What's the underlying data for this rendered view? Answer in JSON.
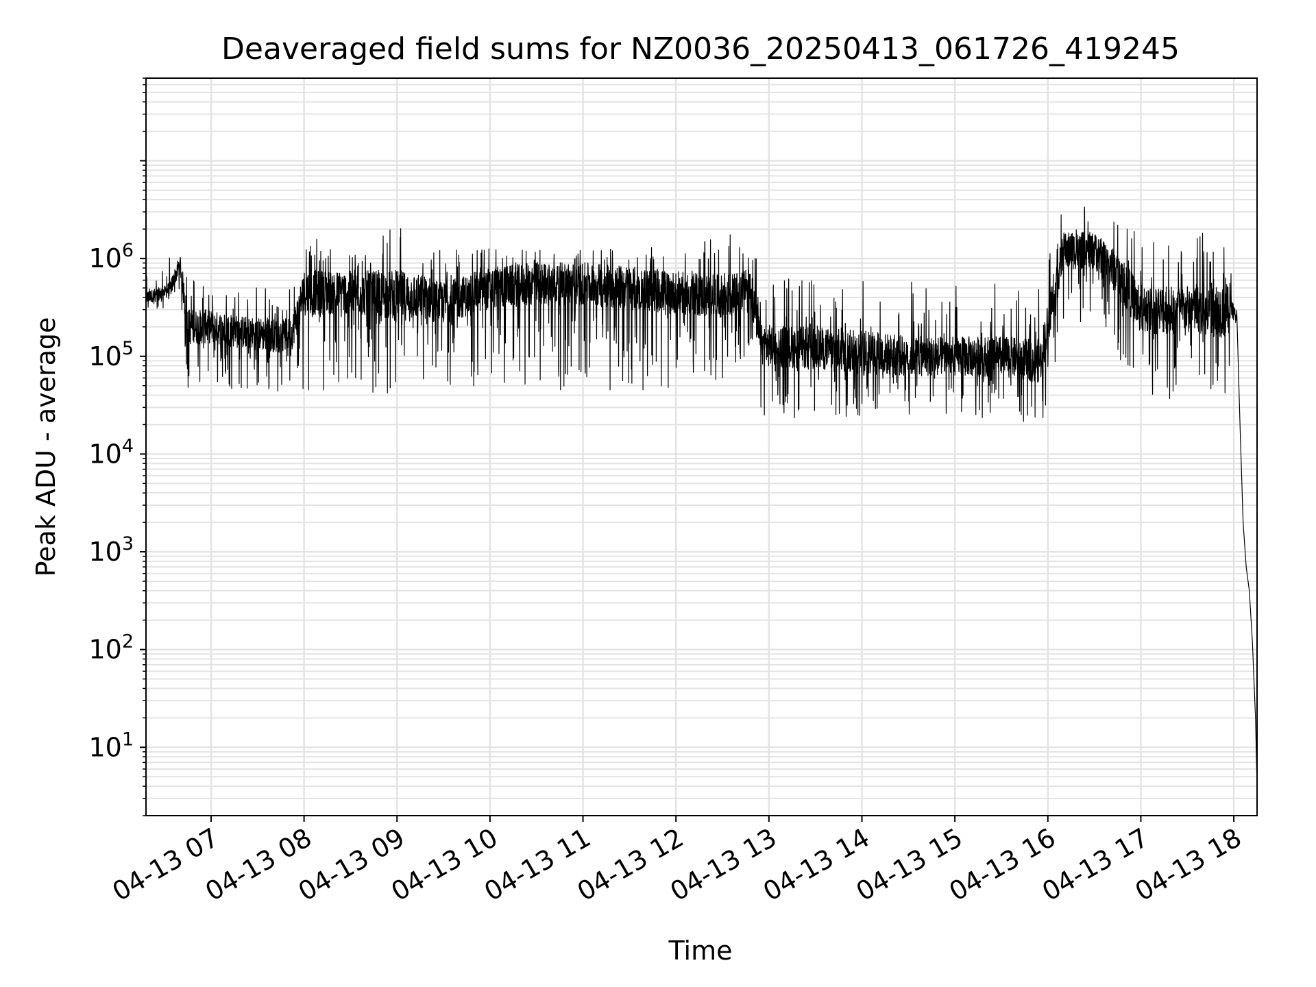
{
  "chart_data": {
    "type": "line",
    "title": "Deaveraged field sums for NZ0036_20250413_061726_419245",
    "xlabel": "Time",
    "ylabel": "Peak ADU - average",
    "y_scale": "log",
    "ylim": [
      2,
      70000000
    ],
    "xlim": [
      "04-13 06:18",
      "04-13 18:15"
    ],
    "grid": true,
    "grid_minor_y": true,
    "line_color": "#000000",
    "grid_color": "#e3e3e3",
    "x_ticks": [
      "04-13 07",
      "04-13 08",
      "04-13 09",
      "04-13 10",
      "04-13 11",
      "04-13 12",
      "04-13 13",
      "04-13 14",
      "04-13 15",
      "04-13 16",
      "04-13 17",
      "04-13 18"
    ],
    "y_ticks": [
      {
        "value": 10,
        "base": "10",
        "exp": "1"
      },
      {
        "value": 100,
        "base": "10",
        "exp": "2"
      },
      {
        "value": 1000,
        "base": "10",
        "exp": "3"
      },
      {
        "value": 10000,
        "base": "10",
        "exp": "4"
      },
      {
        "value": 100000,
        "base": "10",
        "exp": "5"
      },
      {
        "value": 1000000,
        "base": "10",
        "exp": "6"
      }
    ],
    "series": [
      {
        "x": [
          "04-13 06:18",
          "04-13 06:30",
          "04-13 06:34",
          "04-13 06:40",
          "04-13 06:45",
          "04-13 06:50",
          "04-13 07:00",
          "04-13 07:15",
          "04-13 07:30",
          "04-13 07:45",
          "04-13 07:52",
          "04-13 08:00",
          "04-13 08:30",
          "04-13 09:00",
          "04-13 09:20",
          "04-13 09:30",
          "04-13 10:00",
          "04-13 10:30",
          "04-13 11:00",
          "04-13 11:30",
          "04-13 12:00",
          "04-13 12:30",
          "04-13 12:48",
          "04-13 12:55",
          "04-13 13:30",
          "04-13 14:00",
          "04-13 14:30",
          "04-13 15:00",
          "04-13 15:30",
          "04-13 15:50",
          "04-13 15:55",
          "04-13 16:10",
          "04-13 16:30",
          "04-13 16:45",
          "04-13 17:00",
          "04-13 17:30",
          "04-13 17:55",
          "04-13 18:00",
          "04-13 18:02",
          "04-13 18:04",
          "04-13 18:06",
          "04-13 18:08",
          "04-13 18:10",
          "04-13 18:12",
          "04-13 18:14",
          "04-13 18:15"
        ],
        "baseline": [
          400000,
          450000,
          500000,
          900000,
          200000,
          200000,
          200000,
          180000,
          170000,
          160000,
          170000,
          450000,
          450000,
          420000,
          400000,
          350000,
          500000,
          550000,
          550000,
          500000,
          450000,
          400000,
          500000,
          130000,
          120000,
          110000,
          100000,
          100000,
          100000,
          90000,
          90000,
          1200000,
          1200000,
          700000,
          300000,
          300000,
          300000,
          300000,
          250000,
          20000,
          2000,
          700,
          400,
          120,
          20,
          4
        ],
        "low": [
          250000,
          300000,
          350000,
          450000,
          45000,
          45000,
          45000,
          45000,
          45000,
          40000,
          45000,
          45000,
          45000,
          40000,
          45000,
          45000,
          50000,
          45000,
          45000,
          45000,
          45000,
          60000,
          90000,
          25000,
          22000,
          20000,
          25000,
          25000,
          22000,
          20000,
          17000,
          200000,
          200000,
          100000,
          35000,
          35000,
          30000,
          250000,
          200000,
          20000,
          2000,
          700,
          400,
          120,
          20,
          4
        ],
        "high": [
          700000,
          800000,
          1200000,
          2500000,
          800000,
          700000,
          600000,
          600000,
          600000,
          550000,
          600000,
          1700000,
          1300000,
          2200000,
          1300000,
          1200000,
          1300000,
          1300000,
          1300000,
          1400000,
          1200000,
          2000000,
          1600000,
          700000,
          600000,
          650000,
          600000,
          550000,
          550000,
          550000,
          550000,
          3800000,
          3600000,
          3000000,
          1800000,
          1500000,
          2700000,
          500000,
          300000,
          20000,
          2000,
          700,
          400,
          120,
          20,
          4
        ]
      }
    ]
  }
}
